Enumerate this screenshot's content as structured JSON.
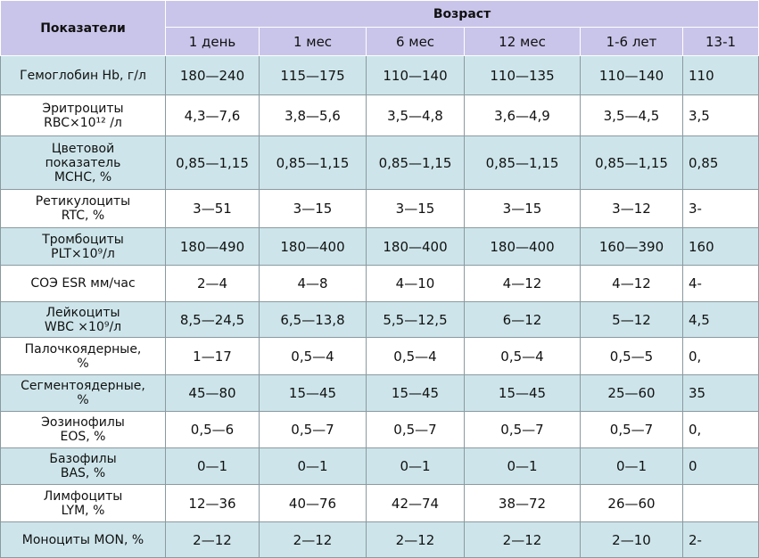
{
  "table": {
    "header": {
      "label": "Показатели",
      "group": "Возраст",
      "columns": [
        "1 день",
        "1 мес",
        "6 мес",
        "12 мес",
        "1-6 лет",
        "13-1"
      ]
    },
    "rows": [
      [
        "Гемоглобин Hb, г/л",
        "180—240",
        "115—175",
        "110—140",
        "110—135",
        "110—140",
        "110"
      ],
      [
        "Эритроциты\nRBC×10¹² /л",
        "4,3—7,6",
        "3,8—5,6",
        "3,5—4,8",
        "3,6—4,9",
        "3,5—4,5",
        "3,5"
      ],
      [
        "Цветовой\nпоказатель\nMCHC, %",
        "0,85—1,15",
        "0,85—1,15",
        "0,85—1,15",
        "0,85—1,15",
        "0,85—1,15",
        "0,85"
      ],
      [
        "Ретикулоциты\nRTC, %",
        "3—51",
        "3—15",
        "3—15",
        "3—15",
        "3—12",
        "3-"
      ],
      [
        "Тромбоциты\nPLT×10⁹/л",
        "180—490",
        "180—400",
        "180—400",
        "180—400",
        "160—390",
        "160"
      ],
      [
        "СОЭ ESR мм/час",
        "2—4",
        "4—8",
        "4—10",
        "4—12",
        "4—12",
        "4-"
      ],
      [
        "Лейкоциты\nWBC ×10⁹/л",
        "8,5—24,5",
        "6,5—13,8",
        "5,5—12,5",
        "6—12",
        "5—12",
        "4,5"
      ],
      [
        "Палочкоядерные,\n%",
        "1—17",
        "0,5—4",
        "0,5—4",
        "0,5—4",
        "0,5—5",
        "0,"
      ],
      [
        "Сегментоядерные,\n%",
        "45—80",
        "15—45",
        "15—45",
        "15—45",
        "25—60",
        "35"
      ],
      [
        "Эозинофилы\nEOS, %",
        "0,5—6",
        "0,5—7",
        "0,5—7",
        "0,5—7",
        "0,5—7",
        "0,"
      ],
      [
        "Базофилы\nBAS, %",
        "0—1",
        "0—1",
        "0—1",
        "0—1",
        "0—1",
        "0"
      ],
      [
        "Лимфоциты\nLYM, %",
        "12—36",
        "40—76",
        "42—74",
        "38—72",
        "26—60",
        null
      ],
      [
        "Моноциты MON, %",
        "2—12",
        "2—12",
        "2—12",
        "2—12",
        "2—10",
        "2-"
      ]
    ]
  }
}
